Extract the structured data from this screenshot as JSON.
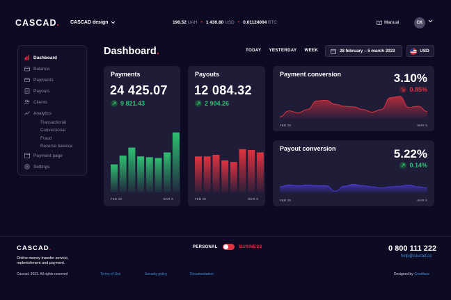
{
  "header": {
    "logo": "CASCAD",
    "logo_dot": ".",
    "account_name": "CASCAD design",
    "balances": [
      {
        "amount": "190.52",
        "unit": "UAH"
      },
      {
        "amount": "1 430.80",
        "unit": "USD"
      },
      {
        "amount": "0.01124004",
        "unit": "BTC"
      }
    ],
    "balance_separator": "•",
    "manual_label": "Manual",
    "avatar_initials": "CK"
  },
  "sidebar": {
    "items": [
      {
        "label": "Dashboard",
        "icon": "chart-icon"
      },
      {
        "label": "Balance",
        "icon": "wallet-icon"
      },
      {
        "label": "Payments",
        "icon": "card-icon"
      },
      {
        "label": "Payouts",
        "icon": "payout-icon"
      },
      {
        "label": "Clients",
        "icon": "users-icon"
      },
      {
        "label": "Analytics",
        "icon": "analytics-icon"
      }
    ],
    "analytics_sub": [
      "Transactional",
      "Conversional",
      "Fraud",
      "Reverse balance"
    ],
    "bottom_items": [
      {
        "label": "Payment page",
        "icon": "page-icon"
      },
      {
        "label": "Settings",
        "icon": "gear-icon"
      }
    ]
  },
  "main": {
    "title": "Dashboard",
    "title_dot": ".",
    "filters": [
      "TODAY",
      "YESTERDAY",
      "WEEK"
    ],
    "date_range": "28 february – 5 march 2023",
    "currency": "USD"
  },
  "cards": {
    "payments": {
      "title": "Payments",
      "value": "24 425.07",
      "delta": "9 821.43",
      "axis_start": "FEB 28",
      "axis_end": "MAR 5"
    },
    "payouts": {
      "title": "Payouts",
      "value": "12 084.32",
      "delta": "2 904.26",
      "axis_start": "FEB 28",
      "axis_end": "MAR 5"
    },
    "payment_conversion": {
      "title": "Payment conversion",
      "value": "3.10%",
      "delta": "0.85%",
      "axis_start": "FEB 28",
      "axis_end": "MAR 5"
    },
    "payout_conversion": {
      "title": "Payout conversion",
      "value": "5.22%",
      "delta": "0.14%",
      "axis_start": "FEB 28",
      "axis_end": "MAR 5"
    }
  },
  "chart_data": [
    {
      "type": "bar",
      "title": "Payments",
      "categories": [
        "1",
        "2",
        "3",
        "4",
        "5",
        "6",
        "7",
        "8"
      ],
      "values": [
        35,
        46,
        56,
        45,
        44,
        43,
        50,
        75
      ],
      "color": "#2fbf71"
    },
    {
      "type": "bar",
      "title": "Payouts",
      "categories": [
        "1",
        "2",
        "3",
        "4",
        "5",
        "6",
        "7",
        "8"
      ],
      "values": [
        45,
        45,
        47,
        40,
        38,
        54,
        53,
        50
      ],
      "color": "#e0323f"
    },
    {
      "type": "area",
      "title": "Payment conversion",
      "x": [
        0,
        1,
        2,
        3,
        4,
        5,
        6,
        7,
        8,
        9,
        10,
        11,
        12,
        13,
        14,
        15,
        16
      ],
      "values": [
        3,
        12,
        9,
        14,
        27,
        28,
        22,
        19,
        18,
        14,
        10,
        14,
        32,
        34,
        17,
        19,
        11
      ],
      "color": "#e0323f"
    },
    {
      "type": "area",
      "title": "Payout conversion",
      "x": [
        0,
        1,
        2,
        3,
        4,
        5,
        6,
        7,
        8,
        9,
        10,
        11,
        12,
        13,
        14,
        15,
        16
      ],
      "values": [
        10,
        13,
        12,
        13,
        12,
        12,
        3,
        11,
        14,
        12,
        10,
        8,
        10,
        11,
        13,
        10,
        8
      ],
      "color": "#4b3ad6"
    }
  ],
  "footer": {
    "logo": "CASCAD",
    "logo_dot": ".",
    "description": "Online money transfer service, replenishment and payment.",
    "copyright": "Cascad, 2023. All rights reserved",
    "links": [
      "Terms of Use",
      "Security policy",
      "Documentation"
    ],
    "toggle_left": "PERSONAL",
    "toggle_right": "BUSINESS",
    "phone": "0 800 111 222",
    "email": "help@cascad.co",
    "designed_prefix": "Designed by",
    "designed_company": "Goodface"
  },
  "colors": {
    "accent_red": "#e0323f",
    "accent_green": "#2fbf71",
    "link_blue": "#3e8ccf",
    "purple": "#4b3ad6"
  }
}
